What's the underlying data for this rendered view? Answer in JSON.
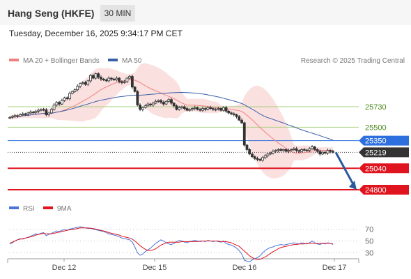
{
  "header": {
    "title": "Hang Seng (HKFE)",
    "interval": "30 MIN",
    "datetime": "Tuesday, December 16, 2025 9:34:17 PM CET"
  },
  "legend": {
    "ma20": "MA 20 + Bollinger Bands",
    "ma50": "MA 50",
    "credit": "Research © 2025 Trading Central",
    "rsi": "RSI",
    "ma9": "9MA"
  },
  "colors": {
    "candle": "#333333",
    "up_fill": "#ffffff",
    "down_fill": "#333333",
    "bollinger": "#fbe0e0",
    "ma20": "#f08080",
    "ma50": "#3a5fa8",
    "support_resistance_green": "#a8d07c",
    "pivot_blue": "#2d6fde",
    "last_price": "#333333",
    "red_level": "#e0141e",
    "rsi": "#4a74d8",
    "rsi_ma": "#e0141e",
    "arrow": "#2a5a9c"
  },
  "chart_data": [
    {
      "type": "candlestick",
      "title": "Hang Seng (HKFE) 30 MIN",
      "x_tick_labels": [
        "Dec 12",
        "Dec 15",
        "Dec 16",
        "Dec 17"
      ],
      "ylim": [
        24765,
        26315
      ],
      "price_levels": [
        {
          "value": 25730,
          "label": "25730",
          "kind": "resistance"
        },
        {
          "value": 25500,
          "label": "25500",
          "kind": "resistance"
        },
        {
          "value": 25350,
          "label": "25350",
          "kind": "pivot"
        },
        {
          "value": 25219,
          "label": "25219",
          "kind": "last"
        },
        {
          "value": 25040,
          "label": "25040",
          "kind": "support"
        },
        {
          "value": 24800,
          "label": "24800",
          "kind": "support"
        }
      ],
      "close": [
        25610,
        25620,
        25630,
        25625,
        25640,
        25650,
        25645,
        25660,
        25670,
        25665,
        25680,
        25690,
        25700,
        25695,
        25640,
        25660,
        25700,
        25750,
        25780,
        25760,
        25800,
        25830,
        25820,
        25880,
        25900,
        25920,
        25960,
        25990,
        26000,
        25980,
        26020,
        26080,
        26050,
        26100,
        26060,
        26040,
        26030,
        26020,
        26050,
        26040,
        26030,
        26050,
        26010,
        26000,
        26010,
        26050,
        26070,
        25950,
        25900,
        25750,
        25700,
        25720,
        25740,
        25760,
        25750,
        25770,
        25790,
        25800,
        25780,
        25760,
        25790,
        25810,
        25770,
        25740,
        25700,
        25720,
        25730,
        25710,
        25690,
        25700,
        25710,
        25720,
        25700,
        25690,
        25710,
        25700,
        25720,
        25710,
        25700,
        25700,
        25710,
        25690,
        25720,
        25680,
        25660,
        25650,
        25640,
        25620,
        25580,
        25550,
        25300,
        25250,
        25200,
        25170,
        25150,
        25140,
        25130,
        25160,
        25180,
        25200,
        25210,
        25230,
        25240,
        25250,
        25240,
        25250,
        25230,
        25240,
        25250,
        25260,
        25240,
        25230,
        25250,
        25245,
        25240,
        25260,
        25280,
        25250,
        25230,
        25200,
        25220,
        25210,
        25240,
        25230,
        25219
      ],
      "ma20_last": 25255,
      "ma50_last": 25355,
      "projection": {
        "from": 25219,
        "to": 24800
      }
    },
    {
      "type": "line",
      "title": "RSI",
      "ylim": [
        0,
        100
      ],
      "levels": [
        70,
        50,
        30
      ],
      "series": [
        {
          "name": "RSI",
          "values": [
            45,
            47,
            50,
            52,
            54,
            53,
            55,
            56,
            58,
            60,
            62,
            61,
            63,
            64,
            59,
            61,
            63,
            65,
            67,
            66,
            68,
            69,
            68,
            70,
            71,
            72,
            73,
            74,
            73,
            72,
            71,
            72,
            70,
            69,
            68,
            67,
            66,
            64,
            62,
            61,
            60,
            59,
            57,
            55,
            54,
            53,
            52,
            48,
            40,
            30,
            26,
            28,
            32,
            35,
            38,
            42,
            46,
            49,
            52,
            50,
            47,
            45,
            44,
            46,
            49,
            51,
            50,
            48,
            47,
            49,
            50,
            51,
            50,
            49,
            50,
            49,
            51,
            50,
            49,
            50,
            49,
            48,
            50,
            46,
            44,
            43,
            41,
            38,
            34,
            28,
            18,
            16,
            15,
            18,
            20,
            22,
            25,
            30,
            34,
            37,
            39,
            40,
            42,
            43,
            44,
            43,
            44,
            45,
            46,
            47,
            46,
            45,
            47,
            46,
            45,
            47,
            50,
            47,
            45,
            44,
            46,
            45,
            47,
            46,
            44
          ]
        },
        {
          "name": "9MA",
          "values": [
            46,
            48,
            50,
            52,
            53,
            54,
            55,
            56,
            57,
            58,
            60,
            61,
            62,
            63,
            62,
            62,
            62,
            63,
            64,
            65,
            66,
            67,
            68,
            69,
            69,
            70,
            71,
            72,
            72,
            72,
            72,
            71,
            71,
            70,
            69,
            68,
            67,
            66,
            64,
            63,
            62,
            61,
            60,
            58,
            57,
            56,
            55,
            53,
            50,
            46,
            42,
            39,
            36,
            34,
            34,
            35,
            37,
            40,
            43,
            45,
            47,
            48,
            48,
            48,
            48,
            48,
            49,
            49,
            49,
            49,
            49,
            49,
            49,
            50,
            50,
            50,
            50,
            50,
            50,
            50,
            50,
            49,
            49,
            49,
            48,
            47,
            45,
            43,
            41,
            37,
            33,
            29,
            25,
            22,
            20,
            19,
            19,
            21,
            23,
            26,
            29,
            32,
            34,
            37,
            39,
            40,
            41,
            42,
            43,
            44,
            44,
            45,
            45,
            45,
            46,
            46,
            46,
            46,
            46,
            46,
            46,
            46,
            46,
            46,
            45
          ]
        }
      ]
    }
  ]
}
